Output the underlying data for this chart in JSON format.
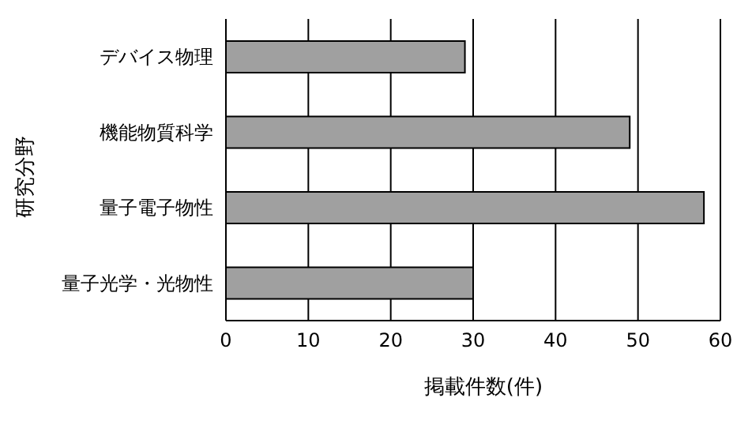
{
  "chart_data": {
    "type": "bar",
    "orientation": "horizontal",
    "xlabel": "掲載件数(件)",
    "ylabel": "研究分野",
    "categories": [
      "デバイス物理",
      "機能物質科学",
      "量子電子物性",
      "量子光学・光物性"
    ],
    "values": [
      29,
      49,
      58,
      30
    ],
    "color": "#a0a0a0",
    "xlim": [
      0,
      60
    ],
    "xticks": [
      0,
      10,
      20,
      30,
      40,
      50,
      60
    ],
    "grid": "x"
  }
}
